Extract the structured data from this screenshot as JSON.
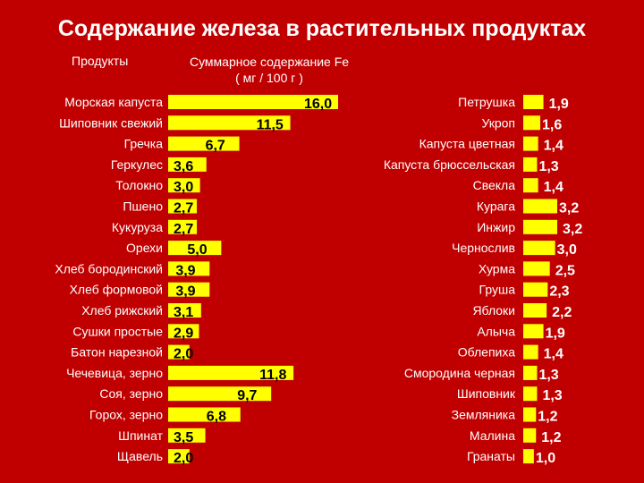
{
  "title": "Содержание железа в растительных продуктах",
  "headers": {
    "products": "Продукты",
    "fe_line1": "Суммарное содержание Fe",
    "fe_line2": "( мг / 100 г )"
  },
  "colors": {
    "background": "#c00000",
    "bar": "#ffff00",
    "text": "#ffffff",
    "value": "#000000",
    "value_right": "#ffffff"
  },
  "chart_data": [
    {
      "type": "bar",
      "orientation": "horizontal",
      "xlim": [
        0,
        16
      ],
      "grid": false,
      "categories": [
        "Морская капуста",
        "Шиповник свежий",
        "Гречка",
        "Геркулес",
        "Толокно",
        "Пшено",
        "Кукуруза",
        "Орехи",
        "Хлеб бородинский",
        "Хлеб формовой",
        "Хлеб рижский",
        "Сушки простые",
        "Батон нарезной",
        "Чечевица, зерно",
        "Соя, зерно",
        "Горох, зерно",
        "Шпинат",
        "Щавель"
      ],
      "values": [
        16.0,
        11.5,
        6.7,
        3.6,
        3.0,
        2.7,
        2.7,
        5.0,
        3.9,
        3.9,
        3.1,
        2.9,
        2.0,
        11.8,
        9.7,
        6.8,
        3.5,
        2.0
      ],
      "value_labels": [
        "16,0",
        "11,5",
        "6,7",
        "3,6",
        "3,0",
        "2,7",
        "2,7",
        "5,0",
        "3,9",
        "3,9",
        "3,1",
        "2,9",
        "2,0",
        "11,8",
        "9,7",
        "6,8",
        "3,5",
        "2,0"
      ]
    },
    {
      "type": "bar",
      "orientation": "horizontal",
      "xlim": [
        0,
        16
      ],
      "grid": false,
      "categories": [
        "Петрушка",
        "Укроп",
        "Капуста цветная",
        "Капуста брюссельская",
        "Свекла",
        "Курага",
        "Инжир",
        "Чернослив",
        "Хурма",
        "Груша",
        "Яблоки",
        "Алыча",
        "Облепиха",
        "Смородина черная",
        "Шиповник",
        "Земляника",
        "Малина",
        "Гранаты"
      ],
      "values": [
        1.9,
        1.6,
        1.4,
        1.3,
        1.4,
        3.2,
        3.2,
        3.0,
        2.5,
        2.3,
        2.2,
        1.9,
        1.4,
        1.3,
        1.3,
        1.2,
        1.2,
        1.0
      ],
      "value_labels": [
        "1,9",
        "1,6",
        "1,4",
        "1,3",
        "1,4",
        "3,2",
        "3,2",
        "3,0",
        "2,5",
        "2,3",
        "2,2",
        "1,9",
        "1,4",
        "1,3",
        "1,3",
        "1,2",
        "1,2",
        "1,0"
      ]
    }
  ]
}
